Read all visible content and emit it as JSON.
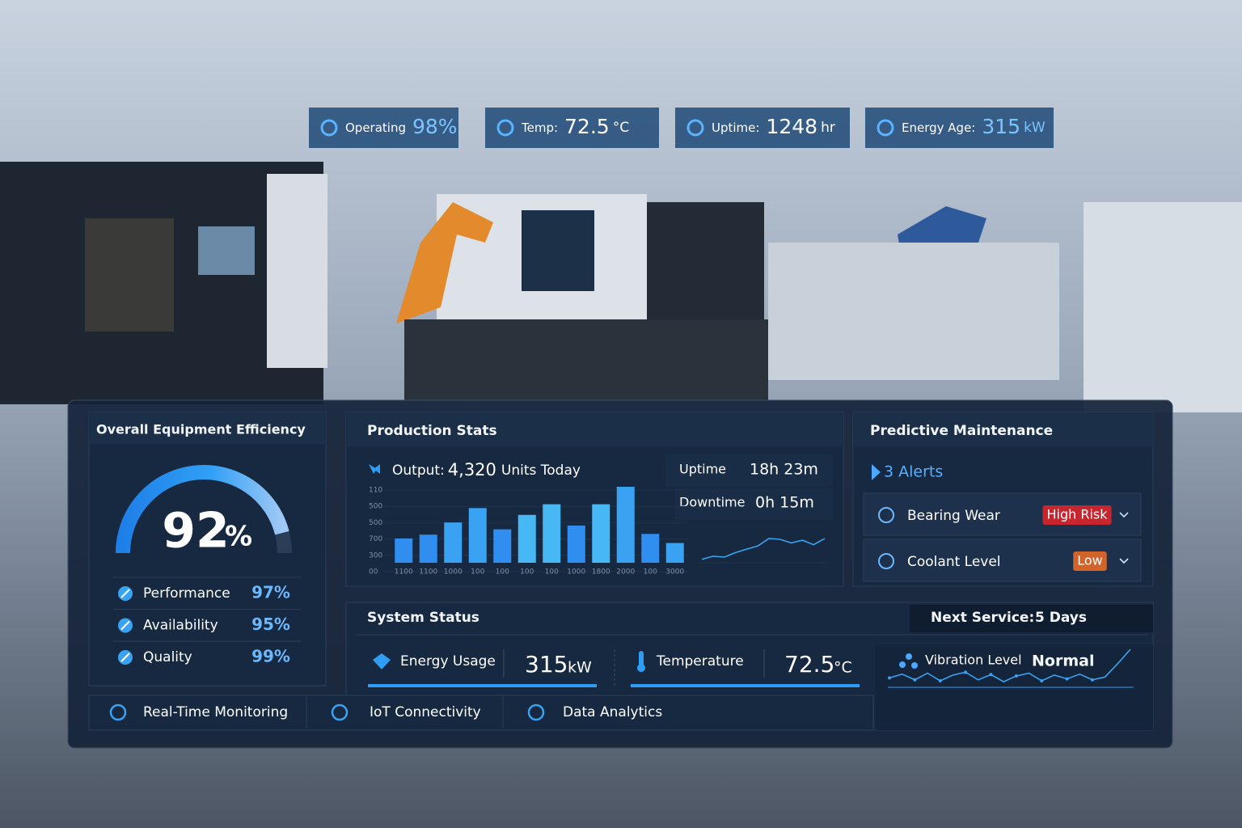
{
  "status_chips": [
    {
      "label": "Operating",
      "value": "98%"
    },
    {
      "label": "Temp:",
      "value": "72.5",
      "unit": "°C"
    },
    {
      "label": "Uptime:",
      "value": "1248",
      "unit": "hr"
    },
    {
      "label": "Energy Age:",
      "value": "315",
      "unit": "kW"
    }
  ],
  "oee": {
    "title": "Overall Equipment Efficiency",
    "value": 92,
    "unit": "%",
    "metrics": [
      {
        "label": "Performance",
        "value": "97%"
      },
      {
        "label": "Availability",
        "value": "95%"
      },
      {
        "label": "Quality",
        "value": "99%"
      }
    ]
  },
  "production": {
    "title": "Production Stats",
    "output_label": "Output:",
    "output_value": "4,320",
    "output_unit": "Units Today",
    "uptime_label": "Uptime",
    "uptime_value": "18h 23m",
    "downtime_label": "Downtime",
    "downtime_value": "0h 15m",
    "chart": {
      "type": "bar",
      "values": [
        32,
        37,
        53,
        72,
        44,
        63,
        77,
        49,
        77,
        100,
        38,
        26
      ],
      "colors": [
        "#2f8ef0",
        "#2f8ef0",
        "#3aa2f2",
        "#3aa2f2",
        "#2f8ef0",
        "#48b8f5",
        "#48b8f5",
        "#2f8ef0",
        "#48b8f5",
        "#3aa2f2",
        "#2f8ef0",
        "#3aa2f2"
      ],
      "ylim": [
        0,
        100
      ],
      "y_labels": [
        "110",
        "500",
        "500",
        "700",
        "300",
        "00"
      ],
      "x_labels": [
        "1100",
        "1100",
        "1000",
        "100",
        "100",
        "100",
        "100",
        "1000",
        "1800",
        "2000",
        "100",
        "3000"
      ]
    },
    "trend": {
      "type": "line",
      "values": [
        15,
        22,
        20,
        30,
        38,
        45,
        62,
        60,
        52,
        58,
        48,
        62
      ],
      "ylim": [
        0,
        100
      ],
      "color": "#3aa2f2"
    }
  },
  "maintenance": {
    "title": "Predictive Maintenance",
    "alerts": "3 Alerts",
    "items": [
      {
        "label": "Bearing Wear",
        "status": "High Risk"
      },
      {
        "label": "Coolant Level",
        "status": "Low"
      }
    ]
  },
  "system": {
    "title": "System Status",
    "next_service_label": "Next Service:",
    "next_service_value": "5 Days",
    "energy_label": "Energy Usage",
    "energy_value": "315",
    "energy_unit": "kW",
    "temperature_label": "Temperature",
    "temperature_value": "72.5",
    "temperature_unit": "°C",
    "vibration_label": "Vibration Level",
    "vibration_value": "Normal",
    "vibration_trend": {
      "type": "line",
      "values": [
        40,
        48,
        36,
        50,
        34,
        46,
        52,
        36,
        47,
        32,
        44,
        50,
        34,
        46,
        38,
        48,
        36,
        42,
        70,
        100
      ],
      "ylim": [
        0,
        100
      ],
      "color": "#3aa2f2"
    }
  },
  "features": [
    "Real-Time Monitoring",
    "IoT Connectivity",
    "Data Analytics"
  ]
}
